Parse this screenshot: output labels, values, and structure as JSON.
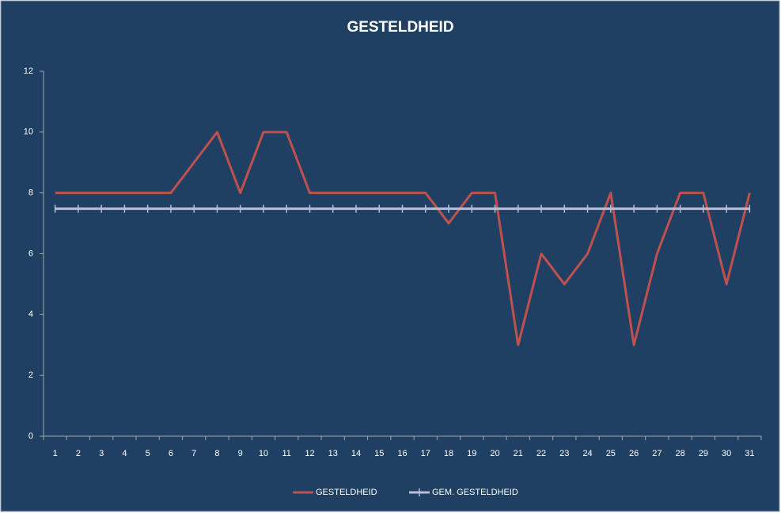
{
  "chart_data": {
    "type": "line",
    "title": "GESTELDHEID",
    "categories": [
      "1",
      "2",
      "3",
      "4",
      "5",
      "6",
      "7",
      "8",
      "9",
      "10",
      "11",
      "12",
      "13",
      "14",
      "15",
      "16",
      "17",
      "18",
      "19",
      "20",
      "21",
      "22",
      "23",
      "24",
      "25",
      "26",
      "27",
      "28",
      "29",
      "30",
      "31"
    ],
    "series": [
      {
        "name": "GESTELDHEID",
        "color": "#c0504d",
        "values": [
          8,
          8,
          8,
          8,
          8,
          8,
          9,
          10,
          8,
          10,
          10,
          8,
          8,
          8,
          8,
          8,
          8,
          7,
          8,
          8,
          3,
          6,
          5,
          6,
          8,
          3,
          6,
          8,
          8,
          5,
          8
        ]
      },
      {
        "name": "GEM. GESTELDHEID",
        "color": "#b9bdd6",
        "values": [
          7.48,
          7.48,
          7.48,
          7.48,
          7.48,
          7.48,
          7.48,
          7.48,
          7.48,
          7.48,
          7.48,
          7.48,
          7.48,
          7.48,
          7.48,
          7.48,
          7.48,
          7.48,
          7.48,
          7.48,
          7.48,
          7.48,
          7.48,
          7.48,
          7.48,
          7.48,
          7.48,
          7.48,
          7.48,
          7.48,
          7.48
        ]
      }
    ],
    "ylim": [
      0,
      12
    ],
    "yticks": [
      0,
      2,
      4,
      6,
      8,
      10,
      12
    ],
    "grid": false,
    "legend": "bottom"
  }
}
